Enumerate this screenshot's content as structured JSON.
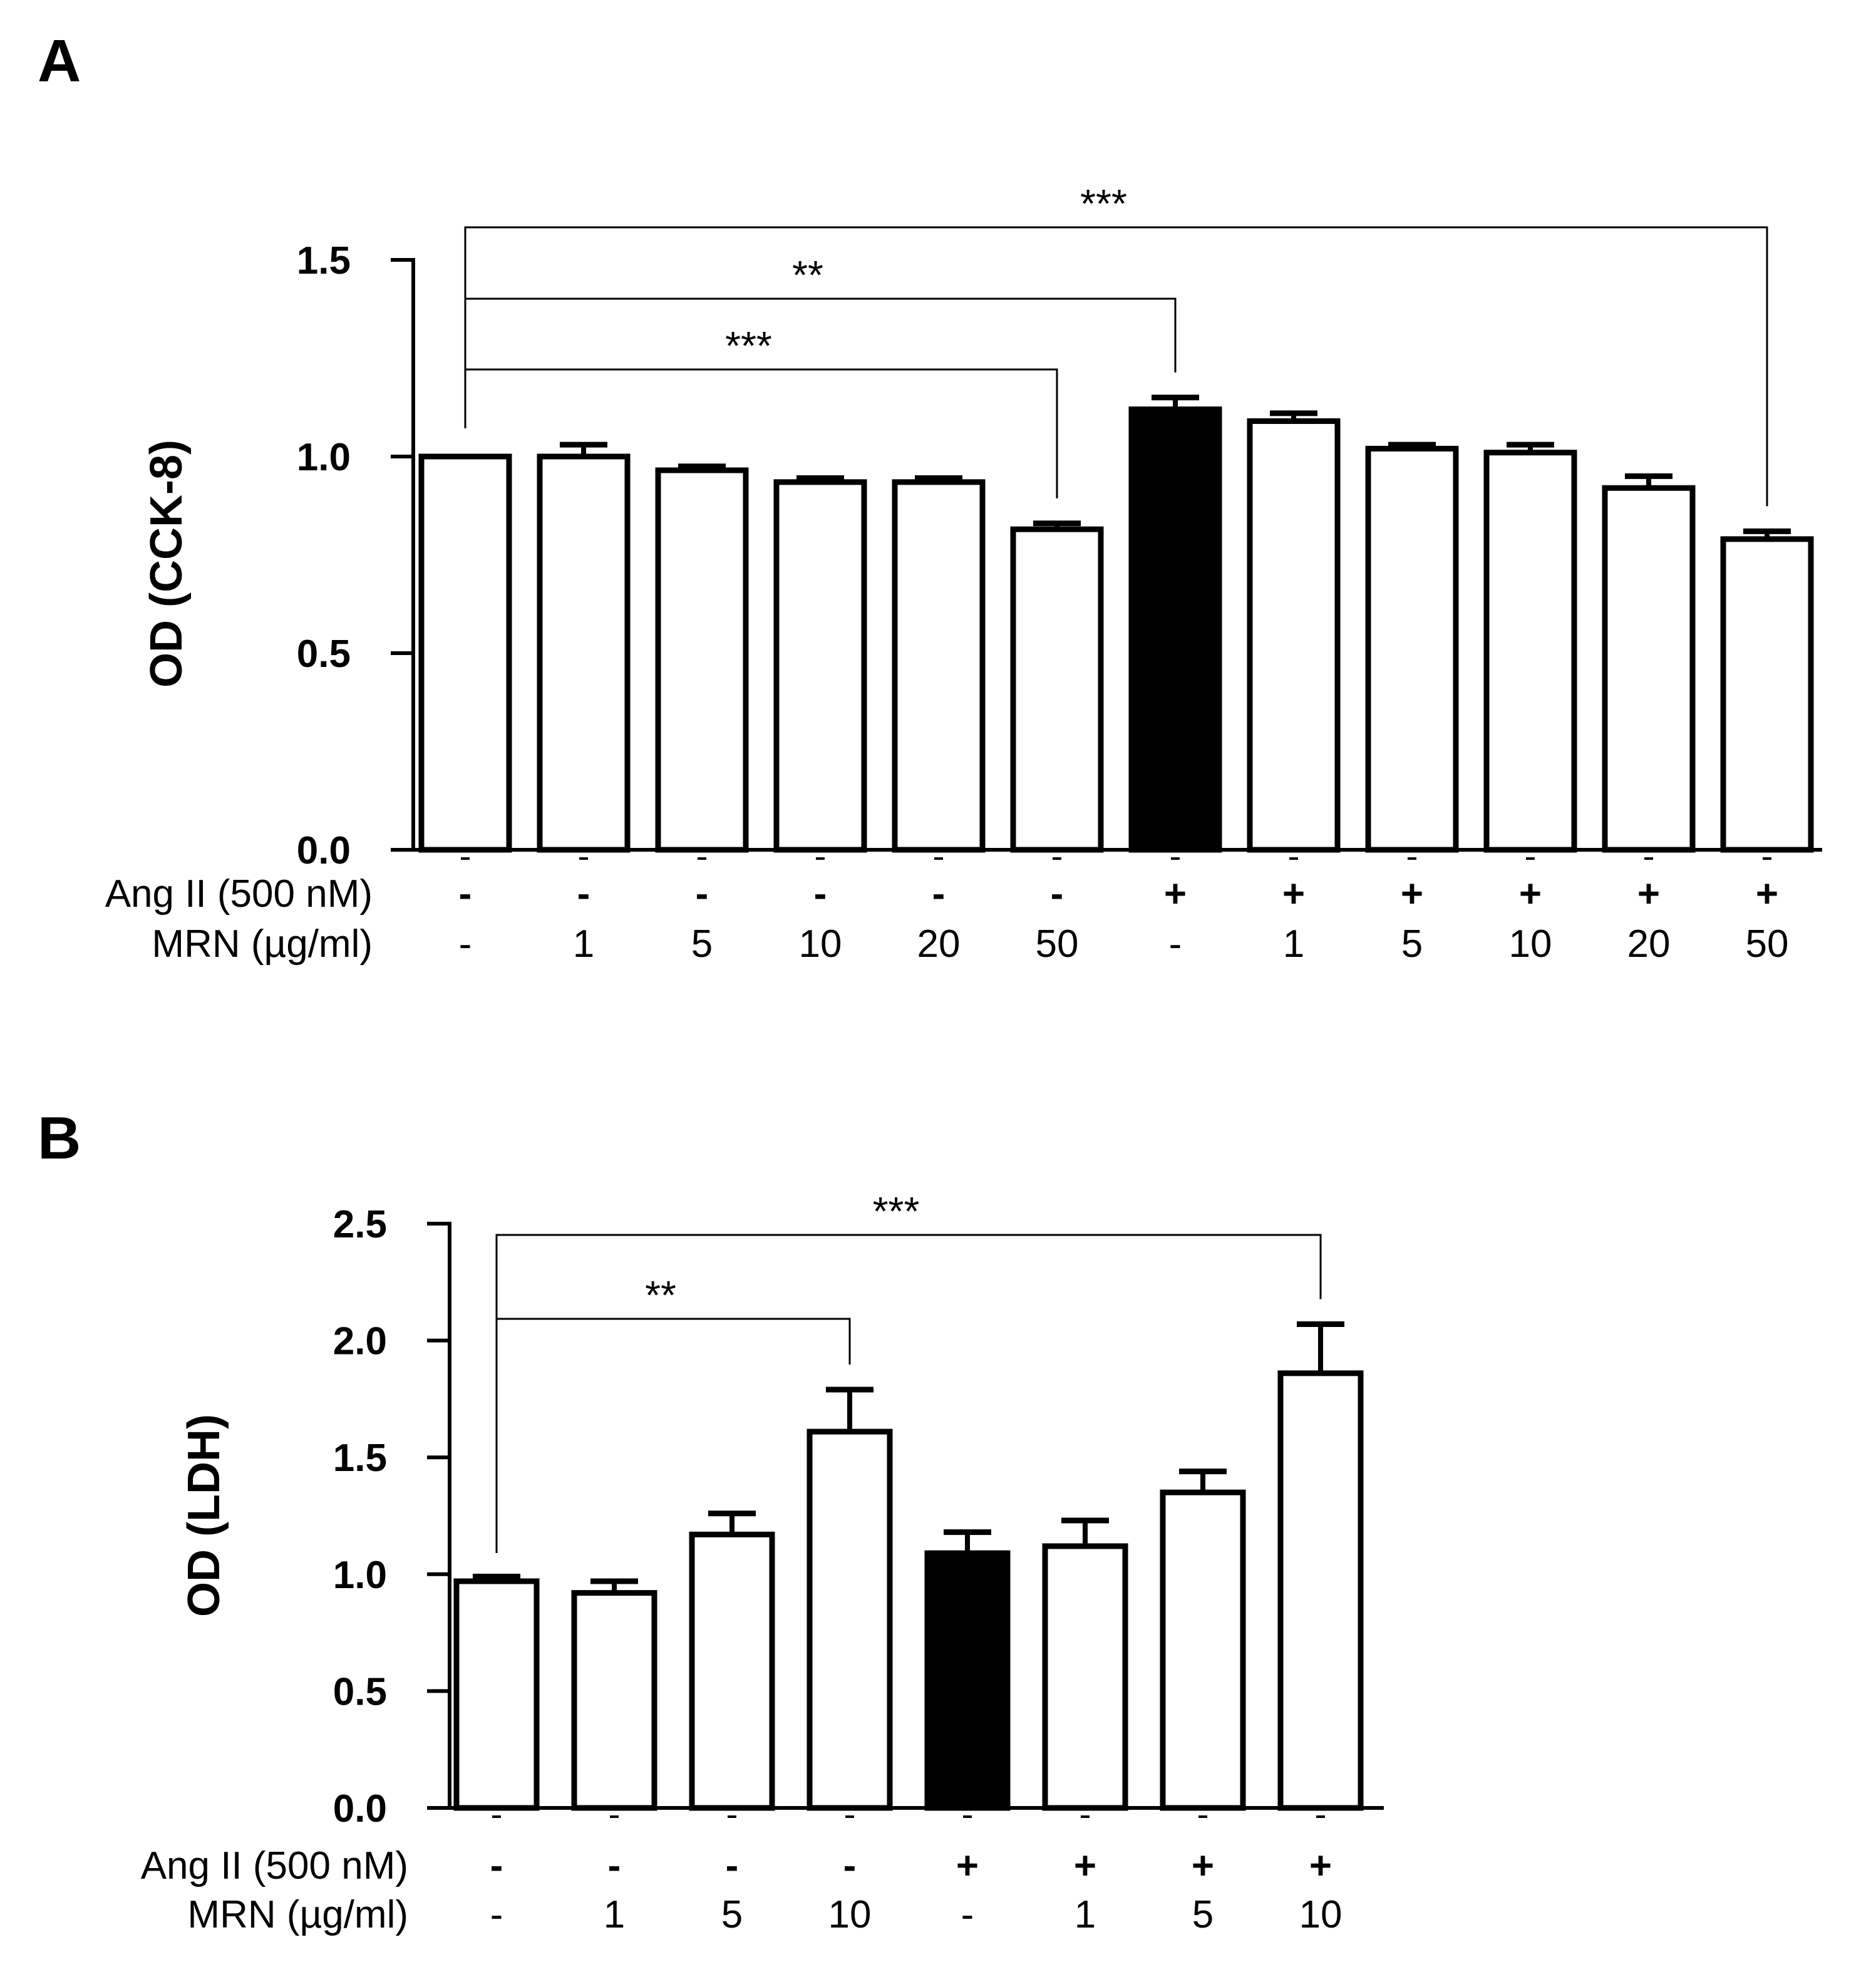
{
  "chart_data": [
    {
      "type": "bar",
      "panel_label": "A",
      "ylabel": "OD (CCK-8)",
      "ylim": [
        0,
        1.5
      ],
      "yticks": [
        "0.0",
        "0.5",
        "1.0",
        "1.5"
      ],
      "row_labels": [
        "Ang II (500 nM)",
        "MRN (µg/ml)"
      ],
      "ang": [
        "-",
        "-",
        "-",
        "-",
        "-",
        "-",
        "+",
        "+",
        "+",
        "+",
        "+",
        "+"
      ],
      "mrn": [
        "-",
        "1",
        "5",
        "10",
        "20",
        "50",
        "-",
        "1",
        "5",
        "10",
        "20",
        "50"
      ],
      "values": [
        1.0,
        1.0,
        0.965,
        0.935,
        0.935,
        0.815,
        1.12,
        1.09,
        1.02,
        1.01,
        0.92,
        0.79
      ],
      "errors": [
        0.0,
        0.03,
        0.01,
        0.01,
        0.01,
        0.015,
        0.03,
        0.02,
        0.01,
        0.02,
        0.03,
        0.02
      ],
      "filled": [
        false,
        false,
        false,
        false,
        false,
        false,
        true,
        false,
        false,
        false,
        false,
        false
      ],
      "significance": [
        {
          "from": 0,
          "to": 5,
          "label": "***"
        },
        {
          "from": 0,
          "to": 6,
          "label": "**"
        },
        {
          "from": 0,
          "to": 11,
          "label": "***"
        }
      ]
    },
    {
      "type": "bar",
      "panel_label": "B",
      "ylabel": "OD (LDH)",
      "ylim": [
        0,
        2.5
      ],
      "yticks": [
        "0.0",
        "0.5",
        "1.0",
        "1.5",
        "2.0",
        "2.5"
      ],
      "row_labels": [
        "Ang II (500 nM)",
        "MRN (µg/ml)"
      ],
      "ang": [
        "-",
        "-",
        "-",
        "-",
        "+",
        "+",
        "+",
        "+"
      ],
      "mrn": [
        "-",
        "1",
        "5",
        "10",
        "-",
        "1",
        "5",
        "10"
      ],
      "values": [
        0.97,
        0.92,
        1.17,
        1.61,
        1.09,
        1.12,
        1.35,
        1.86
      ],
      "errors": [
        0.02,
        0.05,
        0.09,
        0.18,
        0.09,
        0.11,
        0.09,
        0.21
      ],
      "filled": [
        false,
        false,
        false,
        false,
        true,
        false,
        false,
        false
      ],
      "significance": [
        {
          "from": 0,
          "to": 3,
          "label": "**"
        },
        {
          "from": 0,
          "to": 7,
          "label": "***"
        }
      ]
    }
  ]
}
